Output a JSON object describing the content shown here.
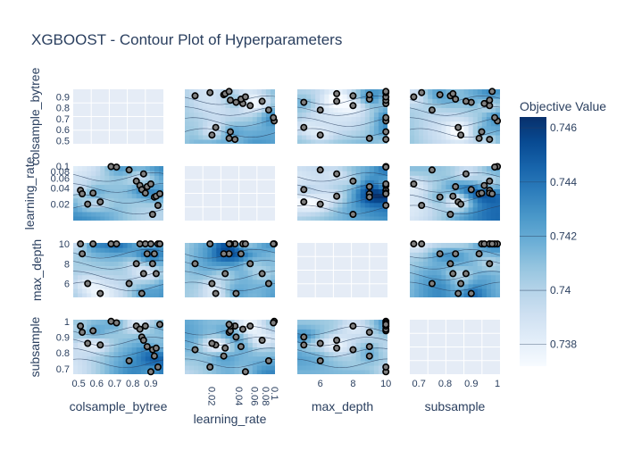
{
  "chart_data": {
    "type": "contour",
    "title": "XGBOOST - Contour Plot of Hyperparameters",
    "params": [
      "colsample_bytree",
      "learning_rate",
      "max_depth",
      "subsample"
    ],
    "axes": {
      "colsample_bytree": {
        "scale": "linear",
        "range": [
          0.47,
          0.97
        ],
        "ticks": [
          0.5,
          0.6,
          0.7,
          0.8,
          0.9
        ],
        "tick_labels": [
          "0.5",
          "0.6",
          "0.7",
          "0.8",
          "0.9"
        ],
        "y_tick_labels": [
          "0.5",
          "0.6",
          "0.7",
          "0.8",
          "0.9"
        ]
      },
      "learning_rate": {
        "scale": "log",
        "range": [
          0.01,
          0.1
        ],
        "ticks": [
          0.02,
          0.04,
          0.06,
          0.08,
          0.1
        ],
        "tick_labels": [
          "0.02",
          "0.04",
          "0.06",
          "0.08",
          "0.1"
        ],
        "y_tick_labels": [
          "0.02",
          "0.04",
          "0.06",
          "0.08",
          "0.1"
        ]
      },
      "max_depth": {
        "scale": "linear",
        "range": [
          4.6,
          10.1
        ],
        "ticks": [
          6,
          8,
          10
        ],
        "tick_labels": [
          "6",
          "8",
          "10"
        ],
        "y_tick_labels": [
          "6",
          "8",
          "10"
        ]
      },
      "subsample": {
        "scale": "linear",
        "range": [
          0.665,
          1.01
        ],
        "ticks": [
          0.7,
          0.8,
          0.9,
          1.0
        ],
        "tick_labels": [
          "0.7",
          "0.8",
          "0.9",
          "1"
        ],
        "y_tick_labels": [
          "0.7",
          "0.8",
          "0.9",
          "1"
        ]
      }
    },
    "colorbar": {
      "title": "Objective Value",
      "colorscale": "Blues",
      "range": [
        0.7372,
        0.7464
      ],
      "ticks": [
        0.738,
        0.74,
        0.742,
        0.744,
        0.746
      ],
      "tick_labels": [
        "0.738",
        "0.74",
        "0.742",
        "0.744",
        "0.746"
      ]
    },
    "trials": [
      {
        "colsample_bytree": 0.51,
        "learning_rate": 0.036,
        "max_depth": 10,
        "subsample": 0.97
      },
      {
        "colsample_bytree": 0.52,
        "learning_rate": 0.031,
        "max_depth": 9,
        "subsample": 0.93
      },
      {
        "colsample_bytree": 0.58,
        "learning_rate": 0.032,
        "max_depth": 10,
        "subsample": 0.94
      },
      {
        "colsample_bytree": 0.62,
        "learning_rate": 0.022,
        "max_depth": 5,
        "subsample": 0.85
      },
      {
        "colsample_bytree": 0.68,
        "learning_rate": 0.098,
        "max_depth": 10,
        "subsample": 1.0
      },
      {
        "colsample_bytree": 0.71,
        "learning_rate": 0.096,
        "max_depth": 10,
        "subsample": 0.99
      },
      {
        "colsample_bytree": 0.82,
        "learning_rate": 0.053,
        "max_depth": 8,
        "subsample": 0.97
      },
      {
        "colsample_bytree": 0.84,
        "learning_rate": 0.044,
        "max_depth": 10,
        "subsample": 0.95
      },
      {
        "colsample_bytree": 0.85,
        "learning_rate": 0.037,
        "max_depth": 5,
        "subsample": 0.9
      },
      {
        "colsample_bytree": 0.86,
        "learning_rate": 0.072,
        "max_depth": 7,
        "subsample": 0.88
      },
      {
        "colsample_bytree": 0.87,
        "learning_rate": 0.032,
        "max_depth": 10,
        "subsample": 0.97
      },
      {
        "colsample_bytree": 0.88,
        "learning_rate": 0.042,
        "max_depth": 9,
        "subsample": 0.84
      },
      {
        "colsample_bytree": 0.9,
        "learning_rate": 0.047,
        "max_depth": 10,
        "subsample": 0.68
      },
      {
        "colsample_bytree": 0.91,
        "learning_rate": 0.013,
        "max_depth": 8,
        "subsample": 0.82
      },
      {
        "colsample_bytree": 0.92,
        "learning_rate": 0.027,
        "max_depth": 9,
        "subsample": 0.78
      },
      {
        "colsample_bytree": 0.93,
        "learning_rate": 0.028,
        "max_depth": 7,
        "subsample": 0.83
      },
      {
        "colsample_bytree": 0.94,
        "learning_rate": 0.019,
        "max_depth": 10,
        "subsample": 0.71
      },
      {
        "colsample_bytree": 0.95,
        "learning_rate": 0.031,
        "max_depth": 10,
        "subsample": 0.98
      },
      {
        "colsample_bytree": 0.55,
        "learning_rate": 0.02,
        "max_depth": 6,
        "subsample": 0.86
      },
      {
        "colsample_bytree": 0.78,
        "learning_rate": 0.085,
        "max_depth": 6,
        "subsample": 0.75
      }
    ]
  }
}
